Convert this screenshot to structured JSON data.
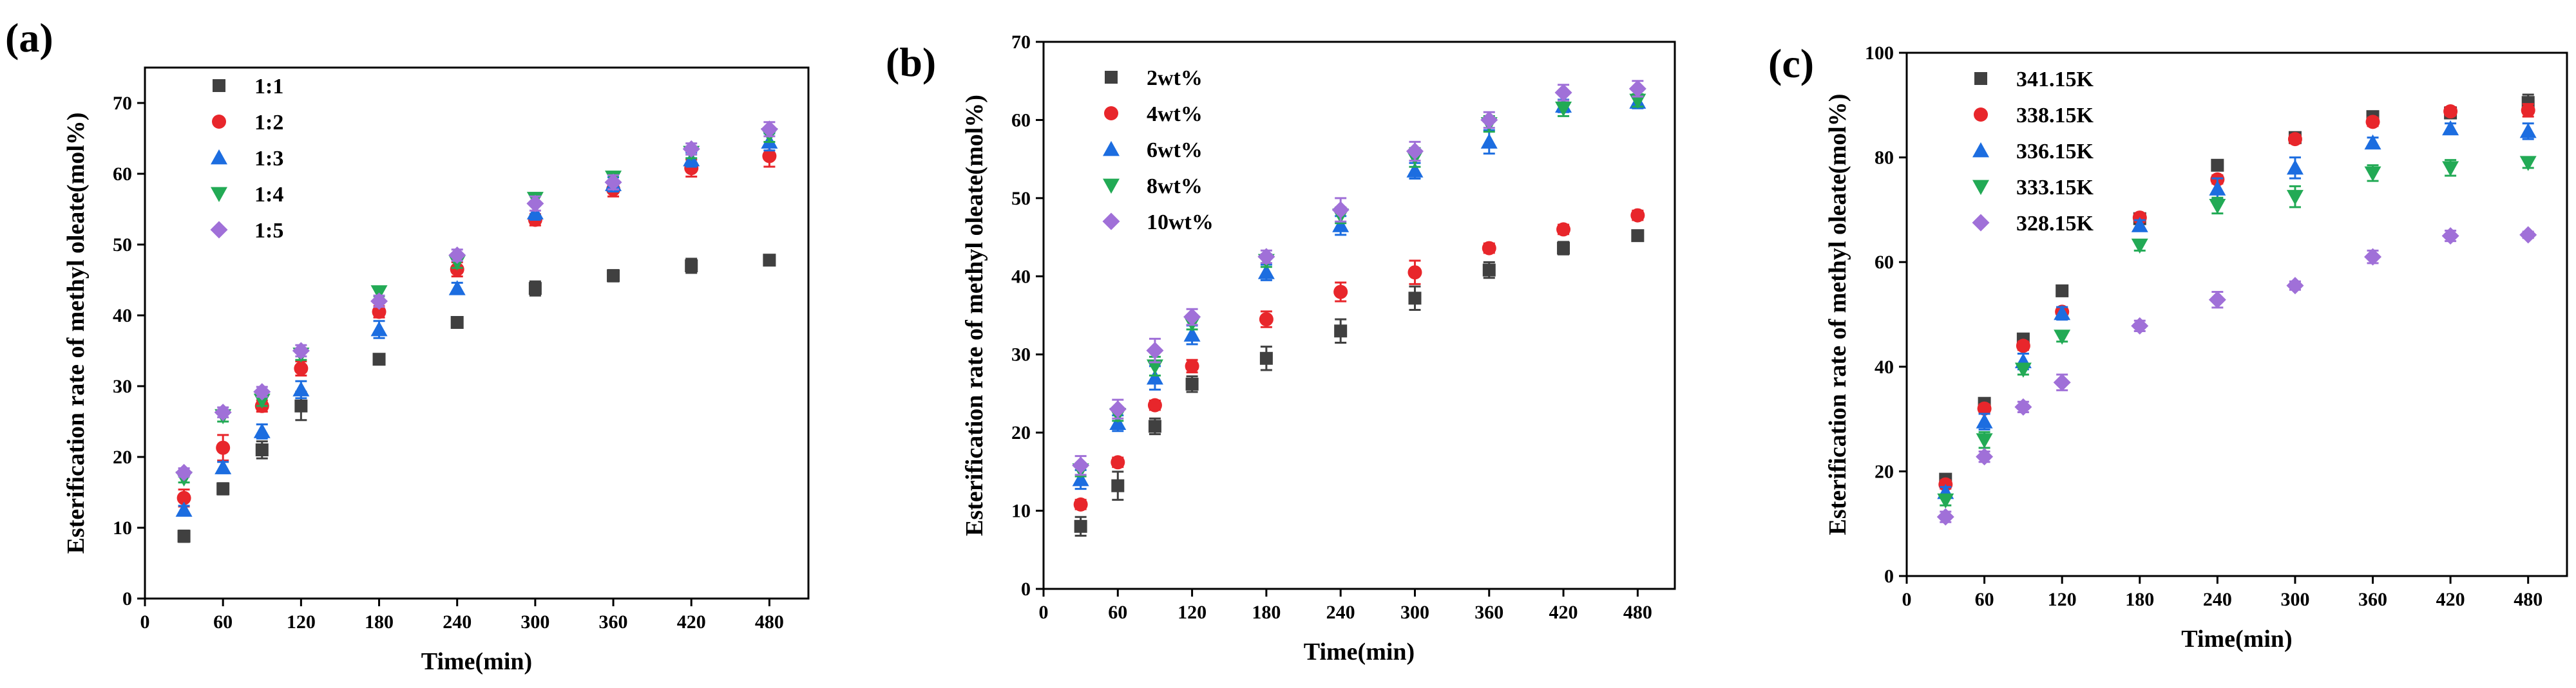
{
  "chart_data": [
    {
      "type": "scatter",
      "panel_label": "(a)",
      "xlabel": "Time(min)",
      "ylabel": "Esterification rate of methyl oleate(mol%)",
      "xlim": [
        0,
        510
      ],
      "ylim": [
        0,
        75
      ],
      "xticks": [
        0,
        60,
        120,
        180,
        240,
        300,
        360,
        420,
        480
      ],
      "yticks": [
        0,
        10,
        20,
        30,
        40,
        50,
        60,
        70
      ],
      "legend_position": "top-left",
      "x": [
        30,
        60,
        90,
        120,
        180,
        240,
        300,
        360,
        420,
        480
      ],
      "series": [
        {
          "name": "1:1",
          "marker": "square",
          "color": "#404040",
          "values": [
            8.8,
            15.5,
            21.0,
            27.2,
            33.8,
            39.0,
            43.8,
            45.6,
            47.0,
            47.8
          ],
          "errors": [
            0.8,
            0.8,
            1.2,
            2.0,
            0.5,
            0.7,
            1.0,
            0.8,
            1.0,
            0.7
          ]
        },
        {
          "name": "1:2",
          "marker": "circle",
          "color": "#e8262b",
          "values": [
            14.2,
            21.3,
            27.2,
            32.5,
            40.5,
            46.5,
            53.5,
            57.8,
            60.8,
            62.5
          ],
          "errors": [
            1.2,
            1.8,
            0.8,
            1.0,
            0.8,
            1.0,
            0.8,
            1.0,
            1.2,
            1.5
          ]
        },
        {
          "name": "1:3",
          "marker": "triangle-up",
          "color": "#1c6de0",
          "values": [
            12.5,
            18.5,
            23.6,
            29.5,
            38.0,
            43.8,
            54.5,
            58.5,
            62.0,
            64.5
          ],
          "errors": [
            0.6,
            0.8,
            1.0,
            1.2,
            1.2,
            0.8,
            1.0,
            1.0,
            1.0,
            1.2
          ]
        },
        {
          "name": "1:4",
          "marker": "triangle-down",
          "color": "#22aa55",
          "values": [
            17.0,
            25.8,
            28.0,
            34.5,
            43.3,
            47.5,
            56.5,
            59.5,
            63.0,
            65.5
          ],
          "errors": [
            0.6,
            0.8,
            0.8,
            0.8,
            0.6,
            0.8,
            0.8,
            0.8,
            0.8,
            1.0
          ]
        },
        {
          "name": "1:5",
          "marker": "diamond",
          "color": "#a070d8",
          "values": [
            17.8,
            26.3,
            29.2,
            35.0,
            42.0,
            48.5,
            55.8,
            58.8,
            63.5,
            66.3
          ],
          "errors": [
            0.6,
            0.7,
            0.7,
            0.8,
            0.8,
            0.8,
            1.0,
            1.0,
            0.8,
            1.0
          ]
        }
      ]
    },
    {
      "type": "scatter",
      "panel_label": "(b)",
      "xlabel": "Time(min)",
      "ylabel": "Esterification rate of methyl oleate(mol%)",
      "xlim": [
        0,
        510
      ],
      "ylim": [
        0,
        70
      ],
      "xticks": [
        0,
        60,
        120,
        180,
        240,
        300,
        360,
        420,
        480
      ],
      "yticks": [
        0,
        10,
        20,
        30,
        40,
        50,
        60,
        70
      ],
      "legend_position": "top-left",
      "x": [
        30,
        60,
        90,
        120,
        180,
        240,
        300,
        360,
        420,
        480
      ],
      "series": [
        {
          "name": "2wt%",
          "marker": "square",
          "color": "#404040",
          "values": [
            8.0,
            13.2,
            20.8,
            26.2,
            29.5,
            33.0,
            37.2,
            40.8,
            43.6,
            45.2
          ],
          "errors": [
            1.2,
            1.8,
            1.0,
            1.0,
            1.5,
            1.5,
            1.5,
            1.0,
            0.8,
            0.6
          ]
        },
        {
          "name": "4wt%",
          "marker": "circle",
          "color": "#e8262b",
          "values": [
            10.8,
            16.2,
            23.5,
            28.5,
            34.5,
            38.0,
            40.5,
            43.6,
            46.0,
            47.8
          ],
          "errors": [
            0.6,
            0.6,
            0.6,
            0.8,
            1.0,
            1.2,
            1.5,
            0.6,
            0.6,
            0.6
          ]
        },
        {
          "name": "6wt%",
          "marker": "triangle-up",
          "color": "#1c6de0",
          "values": [
            14.0,
            21.2,
            27.0,
            32.5,
            40.5,
            46.5,
            53.5,
            57.2,
            61.8,
            62.3
          ],
          "errors": [
            1.2,
            1.0,
            1.5,
            1.2,
            1.0,
            1.2,
            1.0,
            1.5,
            0.8,
            0.8
          ]
        },
        {
          "name": "8wt%",
          "marker": "triangle-down",
          "color": "#22aa55",
          "values": [
            15.2,
            22.3,
            28.5,
            34.0,
            42.0,
            47.8,
            55.2,
            59.5,
            61.5,
            62.5
          ],
          "errors": [
            0.8,
            0.8,
            1.2,
            0.8,
            0.8,
            1.0,
            1.2,
            1.0,
            1.0,
            0.8
          ]
        },
        {
          "name": "10wt%",
          "marker": "diamond",
          "color": "#a070d8",
          "values": [
            15.8,
            23.0,
            30.5,
            34.8,
            42.5,
            48.5,
            56.0,
            60.0,
            63.5,
            64.0
          ],
          "errors": [
            1.2,
            1.2,
            1.5,
            1.0,
            0.8,
            1.5,
            1.2,
            1.0,
            1.0,
            1.0
          ]
        }
      ]
    },
    {
      "type": "scatter",
      "panel_label": "(c)",
      "xlabel": "Time(min)",
      "ylabel": "Esterification rate of methyl oleate(mol%)",
      "xlim": [
        0,
        510
      ],
      "ylim": [
        0,
        100
      ],
      "xticks": [
        0,
        60,
        120,
        180,
        240,
        300,
        360,
        420,
        480
      ],
      "yticks": [
        0,
        20,
        40,
        60,
        80,
        100
      ],
      "legend_position": "top-left",
      "x": [
        30,
        60,
        90,
        120,
        180,
        240,
        300,
        360,
        420,
        480
      ],
      "series": [
        {
          "name": "341.15K",
          "marker": "square",
          "color": "#404040",
          "values": [
            18.5,
            33.0,
            45.3,
            54.5,
            68.3,
            78.5,
            83.8,
            87.8,
            88.5,
            90.5
          ],
          "errors": [
            1.0,
            0.8,
            0.8,
            0.8,
            0.8,
            0.6,
            0.8,
            0.6,
            0.8,
            1.5
          ]
        },
        {
          "name": "338.15K",
          "marker": "circle",
          "color": "#e8262b",
          "values": [
            17.5,
            32.0,
            44.0,
            50.5,
            68.5,
            75.8,
            83.5,
            86.8,
            88.8,
            89.0
          ],
          "errors": [
            0.8,
            0.8,
            0.8,
            0.8,
            0.8,
            0.8,
            0.8,
            0.8,
            0.8,
            1.2
          ]
        },
        {
          "name": "336.15K",
          "marker": "triangle-up",
          "color": "#1c6de0",
          "values": [
            16.0,
            29.5,
            41.0,
            50.2,
            67.0,
            74.0,
            78.0,
            82.8,
            85.5,
            85.0
          ],
          "errors": [
            1.0,
            1.5,
            1.5,
            1.2,
            1.0,
            2.0,
            2.0,
            1.0,
            1.0,
            1.5
          ]
        },
        {
          "name": "333.15K",
          "marker": "triangle-down",
          "color": "#22aa55",
          "values": [
            14.5,
            26.0,
            39.5,
            45.8,
            63.2,
            70.8,
            72.5,
            77.0,
            78.0,
            79.0
          ],
          "errors": [
            1.0,
            1.5,
            1.0,
            1.0,
            1.0,
            1.5,
            2.0,
            1.5,
            1.5,
            1.0
          ]
        },
        {
          "name": "328.15K",
          "marker": "diamond",
          "color": "#a070d8",
          "values": [
            11.3,
            22.8,
            32.3,
            37.0,
            47.8,
            52.8,
            55.5,
            61.0,
            65.0,
            65.2
          ],
          "errors": [
            1.0,
            1.0,
            1.0,
            1.5,
            1.0,
            1.5,
            0.8,
            1.2,
            1.0,
            0.6
          ]
        }
      ]
    }
  ]
}
